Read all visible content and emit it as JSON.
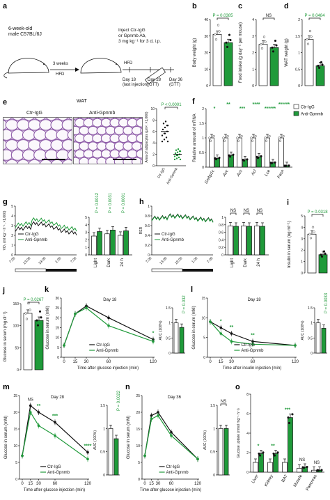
{
  "panels": {
    "a": {
      "label": "a",
      "text": {
        "mouse": "6-week-old\nmale C57BL/6J",
        "weeks": "3 weeks",
        "hfd1": "HFD",
        "hfd2": "HFD",
        "inject": "Inject Ctr-IgG\nor Gpnmb Ab,\n3 mg kg⁻¹ for 3 d, i.p.",
        "day18": "Day 18\n(last injection)",
        "day28": "Day 28\n(GTT)",
        "day36": "Day 36\n(GTT)"
      }
    },
    "b": {
      "label": "b",
      "ylabel": "Body weight (g)",
      "p": "P = 0.0385",
      "ylim": [
        0,
        40
      ],
      "ticks": [
        0,
        10,
        20,
        30,
        40
      ],
      "values": [
        31,
        26
      ]
    },
    "c": {
      "label": "c",
      "ylabel": "Food intake (g day⁻¹ per mouse)",
      "p": "NS",
      "ylim": [
        0,
        4
      ],
      "ticks": [
        0,
        1,
        2,
        3,
        4
      ],
      "values": [
        2.5,
        2.3
      ]
    },
    "d": {
      "label": "d",
      "ylabel": "WAT weight (g)",
      "p": "P = 0.0484",
      "ylim": [
        0,
        2.0
      ],
      "ticks": [
        0,
        0.5,
        1.0,
        1.5,
        2.0
      ],
      "values": [
        1.4,
        0.6
      ]
    },
    "e": {
      "label": "e",
      "title": "WAT",
      "left": "Ctr-IgG",
      "right": "Anti-Gpnmb",
      "ylabel": "Area of adipocytes (μm², ×1,000)",
      "p": "P < 0.0001",
      "ylim": [
        0,
        10
      ],
      "ticks": [
        0,
        2,
        4,
        6,
        8,
        10
      ],
      "groups": [
        "Ctr-IgG",
        "Anti-Gpnmb"
      ],
      "values": [
        6.0,
        2.0
      ]
    },
    "f": {
      "label": "f",
      "ylabel": "Relative amount of mRNA",
      "ylim": [
        0,
        2.0
      ],
      "ticks": [
        0,
        0.5,
        1.0,
        1.5,
        2.0
      ],
      "genes": [
        "Srebp1c",
        "Acc",
        "Acs",
        "Acl",
        "Lce",
        "Fasn"
      ],
      "stars": [
        "*",
        "**",
        "***",
        "****",
        "******",
        "******"
      ],
      "ctr": [
        1.0,
        1.0,
        1.0,
        1.0,
        1.0,
        1.0
      ],
      "anti": [
        0.3,
        0.4,
        0.25,
        0.35,
        0.15,
        0.05
      ],
      "legend": [
        "Ctr-IgG",
        "Anti-Gpnmb"
      ]
    },
    "g": {
      "label": "g",
      "ylabel": "VO₂ (ml kg⁻¹ h⁻¹, ×1,000)",
      "ylim": [
        0,
        5
      ],
      "ticks": [
        0,
        1,
        2,
        3,
        4,
        5
      ],
      "xticks": [
        "7:00",
        "13:00",
        "19:00",
        "1:00",
        "7:00"
      ],
      "legend": [
        "Ctr-IgG",
        "Anti-Gpnmb"
      ],
      "bars": {
        "cats": [
          "Light",
          "Dark",
          "24 h"
        ],
        "p": [
          "P = 0.0012",
          "P = 0.0031",
          "P = 0.0001"
        ],
        "ctr": [
          2.5,
          2.8,
          2.6
        ],
        "anti": [
          3.1,
          3.3,
          3.2
        ]
      }
    },
    "h": {
      "label": "h",
      "ylabel": "RER",
      "ylim": [
        0,
        1.0
      ],
      "ticks": [
        0,
        0.2,
        0.4,
        0.6,
        0.8,
        1.0
      ],
      "xticks": [
        "7:00",
        "13:00",
        "19:00",
        "1:00",
        "7:00"
      ],
      "legend": [
        "Ctr-IgG",
        "Anti-Gpnmb"
      ],
      "bars": {
        "cats": [
          "Light",
          "Dark",
          "24 h"
        ],
        "p": [
          "NS",
          "NS",
          "NS"
        ],
        "ctr": [
          0.77,
          0.77,
          0.77
        ],
        "anti": [
          0.76,
          0.76,
          0.76
        ]
      }
    },
    "i": {
      "label": "i",
      "ylabel": "Insulin in serum (ng ml⁻¹)",
      "p": "P = 0.0318",
      "ylim": [
        0,
        5
      ],
      "ticks": [
        0,
        1,
        2,
        3,
        4,
        5
      ],
      "values": [
        3.4,
        1.6
      ]
    },
    "j": {
      "label": "j",
      "ylabel": "Glucose in serum (mg dl⁻¹)",
      "p": "P = 0.0267",
      "ylim": [
        0,
        150
      ],
      "ticks": [
        0,
        50,
        100,
        150
      ],
      "values": [
        128,
        112
      ]
    },
    "k": {
      "label": "k",
      "title": "Day 18",
      "ylabel": "Glucose in serum (mM)",
      "xlabel": "Time after glucose injection (min)",
      "ylim": [
        0,
        30
      ],
      "ticks": [
        0,
        5,
        10,
        15,
        20,
        25,
        30
      ],
      "xt": [
        0,
        15,
        30,
        60,
        120
      ],
      "star": "*",
      "legend": [
        "Ctr-IgG",
        "Anti-Gpnmb"
      ],
      "ctr": [
        6,
        22,
        26,
        20,
        9
      ],
      "anti": [
        6,
        22,
        25,
        16,
        8
      ],
      "auc": {
        "ylabel": "AUC (100%)",
        "p": "P = 0.032",
        "ylim": [
          0,
          1.5
        ],
        "ticks": [
          0,
          0.5,
          1.0,
          1.5
        ],
        "values": [
          1.0,
          0.85
        ]
      }
    },
    "l": {
      "label": "l",
      "title": "Day 18",
      "ylabel": "Glucose in serum (mM)",
      "xlabel": "Time after insulin injection (min)",
      "ylim": [
        0,
        15
      ],
      "ticks": [
        0,
        5,
        10,
        15
      ],
      "xt": [
        0,
        15,
        30,
        60,
        120
      ],
      "stars": [
        "*",
        "**",
        "**"
      ],
      "legend": [
        "Ctr-IgG",
        "Anti-Gpnmb"
      ],
      "ctr": [
        9,
        7.5,
        6,
        4,
        3
      ],
      "anti": [
        9,
        6,
        4,
        3.3,
        3
      ],
      "auc": {
        "ylabel": "AUC (100%)",
        "p": "P = 0.0033",
        "ylim": [
          0,
          1.5
        ],
        "ticks": [
          0,
          0.5,
          1.0,
          1.5
        ],
        "values": [
          1.0,
          0.82
        ]
      }
    },
    "m": {
      "label": "m",
      "title": "Day 28",
      "ylabel": "Glucose in serum (mM)",
      "xlabel": "Time after glucose injection (min)",
      "ylim": [
        0,
        25
      ],
      "ticks": [
        0,
        5,
        10,
        15,
        20,
        25
      ],
      "xt": [
        0,
        15,
        30,
        60,
        120
      ],
      "stars": [
        "NS",
        "**",
        "***",
        "****"
      ],
      "legend": [
        "Ctr-IgG",
        "Anti-Gpnmb"
      ],
      "ctr": [
        7,
        22,
        20,
        17,
        8
      ],
      "anti": [
        7,
        20,
        16,
        13,
        6
      ],
      "auc": {
        "ylabel": "AUC (100%)",
        "p": "P = 0.0022",
        "ylim": [
          0,
          1.5
        ],
        "ticks": [
          0,
          0.5,
          1.0,
          1.5
        ],
        "values": [
          1.0,
          0.78
        ]
      }
    },
    "n": {
      "label": "n",
      "title": "Day 36",
      "ylabel": "Glucose in serum (mM)",
      "xlabel": "Time after glucose injection (min)",
      "ylim": [
        0,
        25
      ],
      "ticks": [
        0,
        5,
        10,
        15,
        20,
        25
      ],
      "xt": [
        0,
        15,
        30,
        60,
        120
      ],
      "legend": [
        "Ctr-IgG",
        "Anti-Gpnmb"
      ],
      "ctr": [
        7,
        19,
        20,
        14,
        6
      ],
      "anti": [
        7,
        18,
        19,
        13,
        6
      ],
      "auc": {
        "ylabel": "AUC (100%)",
        "p": "NS",
        "ylim": [
          0,
          1.5
        ],
        "ticks": [
          0,
          0.5,
          1.0,
          1.5
        ],
        "values": [
          1.0,
          1.0
        ]
      }
    },
    "o": {
      "label": "o",
      "ylabel": "Glucose uptake (nmol mg⁻¹ h⁻¹)",
      "ylim": [
        0,
        8
      ],
      "ticks": [
        0,
        2,
        4,
        6,
        8
      ],
      "cats": [
        "Liver",
        "Kidney",
        "BAT",
        "Muscle",
        "Pancreas"
      ],
      "stars": [
        "*",
        "**",
        "***",
        "NS",
        "NS"
      ],
      "ctr": [
        1.0,
        1.0,
        1.0,
        0.4,
        0.2
      ],
      "anti": [
        1.9,
        1.9,
        5.6,
        0.5,
        0.2
      ]
    }
  },
  "colors": {
    "ctr": "#ffffff",
    "anti": "#1f9a3a",
    "stroke": "#111111",
    "green": "#1f9a3a"
  },
  "chart_data": [
    {
      "type": "bar",
      "title": "",
      "ylabel": "Body weight (g)",
      "categories": [
        "Ctr-IgG",
        "Anti-Gpnmb"
      ],
      "values": [
        31,
        26
      ],
      "ylim": [
        0,
        40
      ]
    },
    {
      "type": "bar",
      "title": "",
      "ylabel": "Food intake (g day⁻¹ per mouse)",
      "categories": [
        "Ctr-IgG",
        "Anti-Gpnmb"
      ],
      "values": [
        2.5,
        2.3
      ],
      "ylim": [
        0,
        4
      ]
    },
    {
      "type": "bar",
      "title": "",
      "ylabel": "WAT weight (g)",
      "categories": [
        "Ctr-IgG",
        "Anti-Gpnmb"
      ],
      "values": [
        1.4,
        0.6
      ],
      "ylim": [
        0,
        2
      ]
    },
    {
      "type": "bar",
      "title": "",
      "ylabel": "Relative amount of mRNA",
      "categories": [
        "Srebp1c",
        "Acc",
        "Acs",
        "Acl",
        "Lce",
        "Fasn"
      ],
      "series": [
        {
          "name": "Ctr-IgG",
          "values": [
            1,
            1,
            1,
            1,
            1,
            1
          ]
        },
        {
          "name": "Anti-Gpnmb",
          "values": [
            0.3,
            0.4,
            0.25,
            0.35,
            0.15,
            0.05
          ]
        }
      ],
      "ylim": [
        0,
        2
      ]
    },
    {
      "type": "line",
      "title": "Day 18",
      "xlabel": "Time after glucose injection (min)",
      "ylabel": "Glucose in serum (mM)",
      "x": [
        0,
        15,
        30,
        60,
        120
      ],
      "series": [
        {
          "name": "Ctr-IgG",
          "values": [
            6,
            22,
            26,
            20,
            9
          ]
        },
        {
          "name": "Anti-Gpnmb",
          "values": [
            6,
            22,
            25,
            16,
            8
          ]
        }
      ],
      "ylim": [
        0,
        30
      ]
    },
    {
      "type": "line",
      "title": "Day 18",
      "xlabel": "Time after insulin injection (min)",
      "ylabel": "Glucose in serum (mM)",
      "x": [
        0,
        15,
        30,
        60,
        120
      ],
      "series": [
        {
          "name": "Ctr-IgG",
          "values": [
            9,
            7.5,
            6,
            4,
            3
          ]
        },
        {
          "name": "Anti-Gpnmb",
          "values": [
            9,
            6,
            4,
            3.3,
            3
          ]
        }
      ],
      "ylim": [
        0,
        15
      ]
    },
    {
      "type": "line",
      "title": "Day 28",
      "xlabel": "Time after glucose injection (min)",
      "ylabel": "Glucose in serum (mM)",
      "x": [
        0,
        15,
        30,
        60,
        120
      ],
      "series": [
        {
          "name": "Ctr-IgG",
          "values": [
            7,
            22,
            20,
            17,
            8
          ]
        },
        {
          "name": "Anti-Gpnmb",
          "values": [
            7,
            20,
            16,
            13,
            6
          ]
        }
      ],
      "ylim": [
        0,
        25
      ]
    },
    {
      "type": "line",
      "title": "Day 36",
      "xlabel": "Time after glucose injection (min)",
      "ylabel": "Glucose in serum (mM)",
      "x": [
        0,
        15,
        30,
        60,
        120
      ],
      "series": [
        {
          "name": "Ctr-IgG",
          "values": [
            7,
            19,
            20,
            14,
            6
          ]
        },
        {
          "name": "Anti-Gpnmb",
          "values": [
            7,
            18,
            19,
            13,
            6
          ]
        }
      ],
      "ylim": [
        0,
        25
      ]
    },
    {
      "type": "bar",
      "title": "",
      "ylabel": "Glucose uptake (nmol mg⁻¹ h⁻¹)",
      "categories": [
        "Liver",
        "Kidney",
        "BAT",
        "Muscle",
        "Pancreas"
      ],
      "series": [
        {
          "name": "Ctr-IgG",
          "values": [
            1,
            1,
            1,
            0.4,
            0.2
          ]
        },
        {
          "name": "Anti-Gpnmb",
          "values": [
            1.9,
            1.9,
            5.6,
            0.5,
            0.2
          ]
        }
      ],
      "ylim": [
        0,
        8
      ]
    }
  ]
}
